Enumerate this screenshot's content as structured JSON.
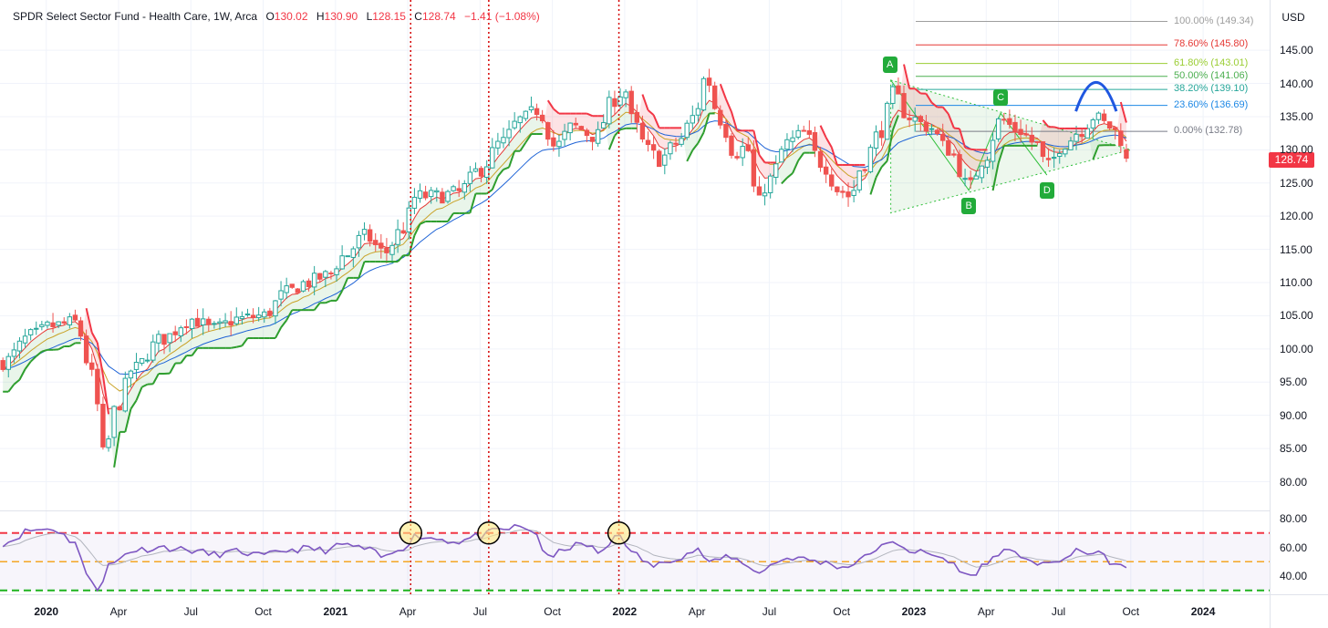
{
  "header": {
    "symbol": "SPDR Select Sector Fund - Health Care, 1W, Arca",
    "open_key": "O",
    "open": "130.02",
    "high_key": "H",
    "high": "130.90",
    "low_key": "L",
    "low": "128.15",
    "close_key": "C",
    "close": "128.74",
    "change": "−1.41 (−1.08%)"
  },
  "currency_button": "USD",
  "last_price_tag": "128.74",
  "colors": {
    "up": "#26a69a",
    "down": "#ef5350",
    "ema_fast": "#e53935",
    "ema_mid": "#c9a227",
    "ema_slow": "#1e63d6",
    "supertrend_up": "#2e9e2e",
    "supertrend_down": "#f23645",
    "rsi": "#7e57c2",
    "vline": "#d50000",
    "arc": "#1f57e0",
    "pattern": "#2fbf3a"
  },
  "fib_levels": [
    {
      "label": "100.00% (149.34)",
      "price": 149.34,
      "color": "#9e9e9e"
    },
    {
      "label": "78.60% (145.80)",
      "price": 145.8,
      "color": "#e53935"
    },
    {
      "label": "61.80% (143.01)",
      "price": 143.01,
      "color": "#9acd32"
    },
    {
      "label": "50.00% (141.06)",
      "price": 141.06,
      "color": "#4caf50"
    },
    {
      "label": "38.20% (139.10)",
      "price": 139.1,
      "color": "#26a69a"
    },
    {
      "label": "23.60% (136.69)",
      "price": 136.69,
      "color": "#1e88e5"
    },
    {
      "label": "0.00% (132.78)",
      "price": 132.78,
      "color": "#787b86"
    }
  ],
  "pattern_points": [
    {
      "label": "A",
      "x": 2022.92,
      "price": 140.5
    },
    {
      "label": "B",
      "x": 2023.19,
      "price": 123.9
    },
    {
      "label": "C",
      "x": 2023.3,
      "price": 135.5
    },
    {
      "label": "D",
      "x": 2023.46,
      "price": 126.2
    }
  ],
  "axis": {
    "price_ticks": [
      "145.00",
      "140.00",
      "135.00",
      "130.00",
      "125.00",
      "120.00",
      "115.00",
      "110.00",
      "105.00",
      "100.00",
      "95.00",
      "90.00",
      "85.00",
      "80.00"
    ],
    "rsi_ticks": [
      "80.00",
      "60.00",
      "40.00"
    ],
    "time_ticks": [
      {
        "label": "2020",
        "x": 2020.0,
        "bold": true
      },
      {
        "label": "Apr",
        "x": 2020.25,
        "bold": false
      },
      {
        "label": "Jul",
        "x": 2020.5,
        "bold": false
      },
      {
        "label": "Oct",
        "x": 2020.75,
        "bold": false
      },
      {
        "label": "2021",
        "x": 2021.0,
        "bold": true
      },
      {
        "label": "Apr",
        "x": 2021.25,
        "bold": false
      },
      {
        "label": "Jul",
        "x": 2021.5,
        "bold": false
      },
      {
        "label": "Oct",
        "x": 2021.75,
        "bold": false
      },
      {
        "label": "2022",
        "x": 2022.0,
        "bold": true
      },
      {
        "label": "Apr",
        "x": 2022.25,
        "bold": false
      },
      {
        "label": "Jul",
        "x": 2022.5,
        "bold": false
      },
      {
        "label": "Oct",
        "x": 2022.75,
        "bold": false
      },
      {
        "label": "2023",
        "x": 2023.0,
        "bold": true
      },
      {
        "label": "Apr",
        "x": 2023.25,
        "bold": false
      },
      {
        "label": "Jul",
        "x": 2023.5,
        "bold": false
      },
      {
        "label": "Oct",
        "x": 2023.75,
        "bold": false
      },
      {
        "label": "2024",
        "x": 2024.0,
        "bold": true
      }
    ]
  },
  "chart_data": {
    "type": "candlestick",
    "x_range": [
      2019.84,
      2024.23
    ],
    "price_range": [
      76,
      153
    ],
    "rsi_range": [
      26,
      82
    ],
    "rsi_levels": [
      70,
      50,
      30
    ],
    "rsi_circles": [
      {
        "x": 2021.26,
        "rsi": 70
      },
      {
        "x": 2021.53,
        "rsi": 70
      },
      {
        "x": 2021.98,
        "rsi": 70
      }
    ],
    "vertical_markers": [
      2021.26,
      2021.53,
      2021.98
    ],
    "control_points": [
      [
        2019.85,
        98.0
      ],
      [
        2019.95,
        102.0
      ],
      [
        2020.02,
        103.5
      ],
      [
        2020.1,
        104.0
      ],
      [
        2020.16,
        96.0
      ],
      [
        2020.2,
        84.0
      ],
      [
        2020.24,
        91.0
      ],
      [
        2020.3,
        97.0
      ],
      [
        2020.4,
        101.5
      ],
      [
        2020.5,
        104.5
      ],
      [
        2020.58,
        103.0
      ],
      [
        2020.66,
        104.5
      ],
      [
        2020.75,
        105.0
      ],
      [
        2020.83,
        108.5
      ],
      [
        2020.9,
        110.0
      ],
      [
        2020.97,
        111.0
      ],
      [
        2021.03,
        114.0
      ],
      [
        2021.1,
        117.0
      ],
      [
        2021.17,
        114.5
      ],
      [
        2021.23,
        118.0
      ],
      [
        2021.28,
        123.0
      ],
      [
        2021.35,
        123.0
      ],
      [
        2021.42,
        123.5
      ],
      [
        2021.5,
        127.0
      ],
      [
        2021.57,
        131.0
      ],
      [
        2021.64,
        134.5
      ],
      [
        2021.7,
        136.0
      ],
      [
        2021.76,
        130.5
      ],
      [
        2021.82,
        133.5
      ],
      [
        2021.9,
        132.0
      ],
      [
        2021.96,
        137.5
      ],
      [
        2022.0,
        139.0
      ],
      [
        2022.03,
        134.0
      ],
      [
        2022.08,
        130.0
      ],
      [
        2022.12,
        128.5
      ],
      [
        2022.18,
        131.0
      ],
      [
        2022.24,
        135.0
      ],
      [
        2022.28,
        141.0
      ],
      [
        2022.33,
        134.5
      ],
      [
        2022.38,
        129.5
      ],
      [
        2022.42,
        130.5
      ],
      [
        2022.46,
        122.0
      ],
      [
        2022.5,
        125.5
      ],
      [
        2022.56,
        131.0
      ],
      [
        2022.62,
        132.5
      ],
      [
        2022.68,
        128.0
      ],
      [
        2022.74,
        124.0
      ],
      [
        2022.78,
        123.0
      ],
      [
        2022.82,
        127.5
      ],
      [
        2022.88,
        132.5
      ],
      [
        2022.93,
        138.5
      ],
      [
        2022.98,
        135.0
      ],
      [
        2023.05,
        133.5
      ],
      [
        2023.12,
        130.0
      ],
      [
        2023.19,
        124.5
      ],
      [
        2023.24,
        128.5
      ],
      [
        2023.3,
        134.5
      ],
      [
        2023.36,
        133.0
      ],
      [
        2023.42,
        131.0
      ],
      [
        2023.46,
        127.5
      ],
      [
        2023.52,
        131.0
      ],
      [
        2023.58,
        133.0
      ],
      [
        2023.62,
        135.0
      ],
      [
        2023.68,
        133.5
      ],
      [
        2023.72,
        131.5
      ],
      [
        2023.75,
        128.74
      ]
    ],
    "rsi_control_points": [
      [
        2019.85,
        63
      ],
      [
        2019.95,
        72
      ],
      [
        2020.02,
        73
      ],
      [
        2020.1,
        64
      ],
      [
        2020.14,
        40
      ],
      [
        2020.18,
        32
      ],
      [
        2020.22,
        48
      ],
      [
        2020.3,
        58
      ],
      [
        2020.4,
        60
      ],
      [
        2020.5,
        58
      ],
      [
        2020.58,
        55
      ],
      [
        2020.66,
        57
      ],
      [
        2020.75,
        54
      ],
      [
        2020.83,
        58
      ],
      [
        2020.9,
        59
      ],
      [
        2020.97,
        58
      ],
      [
        2021.03,
        62
      ],
      [
        2021.1,
        59
      ],
      [
        2021.17,
        53
      ],
      [
        2021.23,
        60
      ],
      [
        2021.28,
        68
      ],
      [
        2021.35,
        66
      ],
      [
        2021.42,
        64
      ],
      [
        2021.5,
        68
      ],
      [
        2021.57,
        72
      ],
      [
        2021.63,
        74
      ],
      [
        2021.68,
        72
      ],
      [
        2021.74,
        52
      ],
      [
        2021.8,
        60
      ],
      [
        2021.86,
        62
      ],
      [
        2021.92,
        56
      ],
      [
        2021.98,
        70
      ],
      [
        2022.03,
        55
      ],
      [
        2022.1,
        47
      ],
      [
        2022.18,
        53
      ],
      [
        2022.25,
        58
      ],
      [
        2022.3,
        49
      ],
      [
        2022.36,
        54
      ],
      [
        2022.42,
        48
      ],
      [
        2022.47,
        42
      ],
      [
        2022.52,
        50
      ],
      [
        2022.58,
        53
      ],
      [
        2022.64,
        51
      ],
      [
        2022.7,
        49
      ],
      [
        2022.76,
        46
      ],
      [
        2022.82,
        52
      ],
      [
        2022.88,
        60
      ],
      [
        2022.94,
        63
      ],
      [
        2023.0,
        57
      ],
      [
        2023.08,
        54
      ],
      [
        2023.14,
        48
      ],
      [
        2023.19,
        39
      ],
      [
        2023.24,
        47
      ],
      [
        2023.3,
        57
      ],
      [
        2023.38,
        54
      ],
      [
        2023.44,
        47
      ],
      [
        2023.52,
        52
      ],
      [
        2023.58,
        58
      ],
      [
        2023.64,
        55
      ],
      [
        2023.7,
        48
      ],
      [
        2023.75,
        43
      ]
    ]
  }
}
